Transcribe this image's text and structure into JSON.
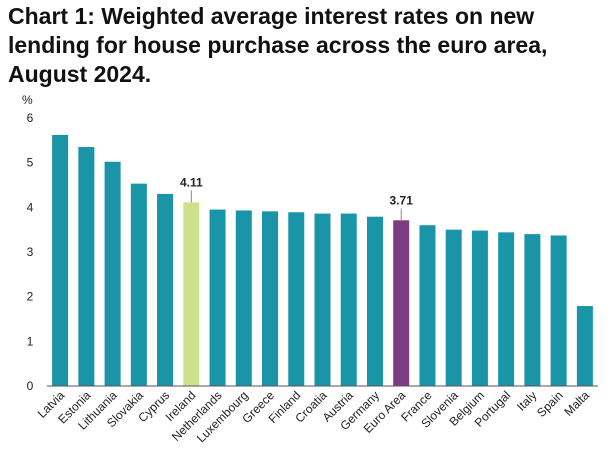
{
  "title": "Chart 1: Weighted average interest rates on new lending for house purchase across the euro area, August 2024.",
  "chart_data": {
    "type": "bar",
    "title": "Chart 1: Weighted average interest rates on new lending for house purchase across the euro area, August 2024.",
    "ylabel": "%",
    "xlabel": "",
    "ylim": [
      0,
      6
    ],
    "yticks": [
      0,
      1,
      2,
      3,
      4,
      5,
      6
    ],
    "grid": false,
    "categories": [
      "Latvia",
      "Estonia",
      "Lithuania",
      "Slovakia",
      "Cyprus",
      "Ireland",
      "Netherlands",
      "Luxembourg",
      "Greece",
      "Finland",
      "Croatia",
      "Austria",
      "Germany",
      "Euro Area",
      "France",
      "Slovenia",
      "Belgium",
      "Portugal",
      "Italy",
      "Spain",
      "Malta"
    ],
    "values": [
      5.62,
      5.35,
      5.02,
      4.53,
      4.3,
      4.11,
      3.95,
      3.93,
      3.91,
      3.89,
      3.86,
      3.86,
      3.79,
      3.71,
      3.6,
      3.5,
      3.48,
      3.44,
      3.4,
      3.37,
      1.79
    ],
    "data_labels": [
      {
        "category": "Ireland",
        "text": "4.11"
      },
      {
        "category": "Euro Area",
        "text": "3.71"
      }
    ],
    "colors": {
      "default": "#1a95a8",
      "Ireland": "#cfe08a",
      "Euro Area": "#7d3c7f",
      "axis": "#555555"
    }
  }
}
